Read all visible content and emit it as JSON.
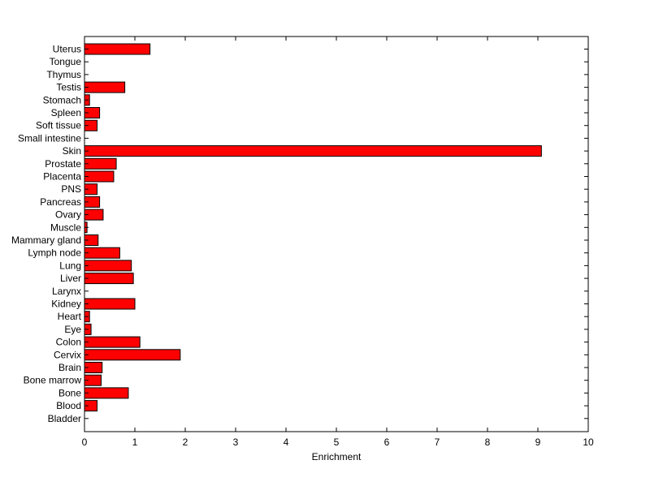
{
  "chart_data": {
    "type": "bar",
    "orientation": "horizontal",
    "categories": [
      "Uterus",
      "Tongue",
      "Thymus",
      "Testis",
      "Stomach",
      "Spleen",
      "Soft tissue",
      "Small intestine",
      "Skin",
      "Prostate",
      "Placenta",
      "PNS",
      "Pancreas",
      "Ovary",
      "Muscle",
      "Mammary gland",
      "Lymph node",
      "Lung",
      "Liver",
      "Larynx",
      "Kidney",
      "Heart",
      "Eye",
      "Colon",
      "Cervix",
      "Brain",
      "Bone marrow",
      "Bone",
      "Blood",
      "Bladder"
    ],
    "values": [
      1.3,
      0,
      0,
      0.8,
      0.1,
      0.3,
      0.25,
      0,
      9.07,
      0.63,
      0.58,
      0.25,
      0.3,
      0.37,
      0.05,
      0.27,
      0.7,
      0.93,
      0.97,
      0,
      1.0,
      0.1,
      0.13,
      1.1,
      1.9,
      0.35,
      0.33,
      0.87,
      0.25,
      0
    ],
    "title": "",
    "xlabel": "Enrichment",
    "ylabel": "",
    "xlim": [
      0,
      10
    ],
    "xticks": [
      "0",
      "1",
      "2",
      "3",
      "4",
      "5",
      "6",
      "7",
      "8",
      "9",
      "10"
    ],
    "grid": false,
    "colors": {
      "bar_fill": "#ff0000",
      "bar_edge": "#000000",
      "axes": "#000000"
    }
  }
}
